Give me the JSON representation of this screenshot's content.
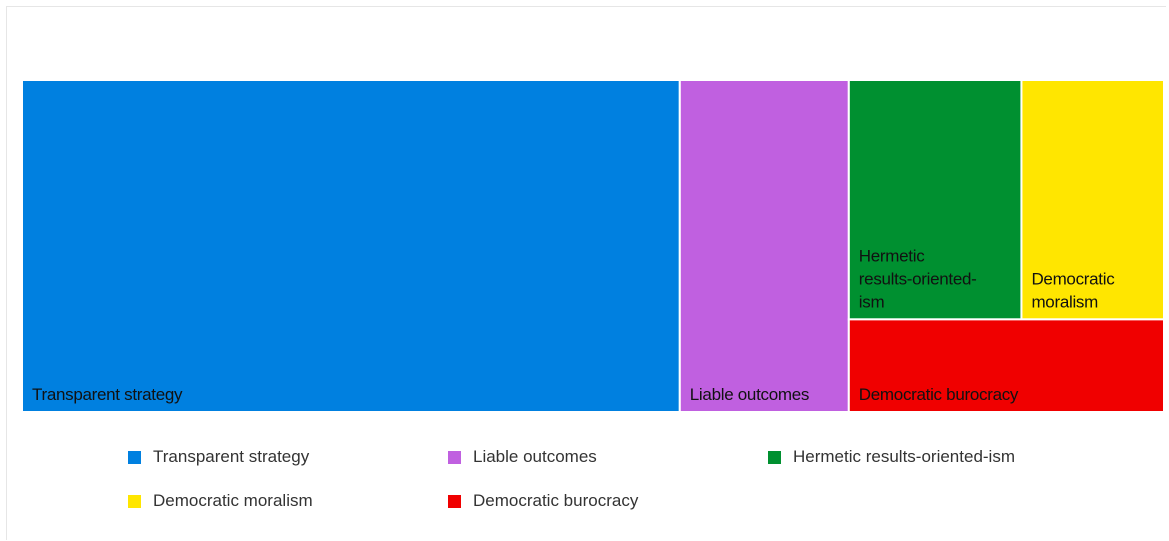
{
  "chart_data": {
    "type": "treemap",
    "title": "",
    "items": [
      {
        "name": "Transparent strategy",
        "value": 57.6,
        "color": "#0080e0"
      },
      {
        "name": "Liable outcomes",
        "value": 14.8,
        "color": "#c060e0"
      },
      {
        "name": "Hermetic results-oriented-ism",
        "label": "Hermetic results-oriented-ism",
        "value": 10.9,
        "color": "#009030"
      },
      {
        "name": "Democratic moralism",
        "value": 9.0,
        "color": "#ffe600"
      },
      {
        "name": "Democratic burocracy",
        "value": 7.7,
        "color": "#f00000"
      }
    ],
    "legend": {
      "placement": "bottom",
      "entries": [
        "Transparent strategy",
        "Liable outcomes",
        "Hermetic results-oriented-ism",
        "Democratic moralism",
        "Democratic burocracy"
      ]
    }
  }
}
